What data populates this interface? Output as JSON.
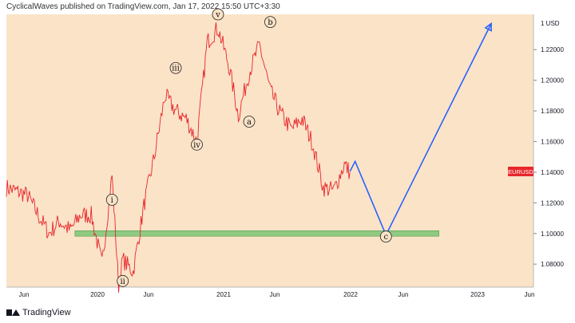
{
  "header": {
    "text": "CyclicalWaves published on TradingView.com, Jan 17, 2022 15:50 UTC+3:30"
  },
  "footer": {
    "brand": "TradingView"
  },
  "colors": {
    "background": "#FBE3C8",
    "price": "#E8262B",
    "projection": "#2962FF",
    "support": "#7CC576",
    "badge": "#E8262B"
  },
  "price_axis": {
    "currency": "1 USD",
    "ticks": [
      "1.22000",
      "1.20000",
      "1.18000",
      "1.16000",
      "1.14000",
      "1.12000",
      "1.10000",
      "1.08000"
    ],
    "ticks_values": [
      1.22,
      1.2,
      1.18,
      1.16,
      1.14,
      1.12,
      1.1,
      1.08
    ],
    "current_label": "EURUSD",
    "current_value": 1.1405
  },
  "time_axis": {
    "labels": [
      "Jun",
      "2020",
      "Jun",
      "2021",
      "Jun",
      "2022",
      "Jun",
      "2023",
      "Jun"
    ]
  },
  "chart_data": {
    "type": "line",
    "symbol": "EURUSD",
    "ylim": [
      1.065,
      1.243
    ],
    "price_path": [
      [
        "2019-05",
        1.13
      ],
      [
        "2019-07",
        1.125
      ],
      [
        "2019-08",
        1.112
      ],
      [
        "2019-09",
        1.1
      ],
      [
        "2019-10",
        1.108
      ],
      [
        "2019-11",
        1.102
      ],
      [
        "2019-12",
        1.112
      ],
      [
        "2020-01",
        1.112
      ],
      [
        "2020-02",
        1.08
      ],
      [
        "2020-03",
        1.138
      ],
      [
        "2020-03-20",
        1.066
      ],
      [
        "2020-04",
        1.083
      ],
      [
        "2020-05",
        1.075
      ],
      [
        "2020-06",
        1.118
      ],
      [
        "2020-07",
        1.15
      ],
      [
        "2020-08",
        1.19
      ],
      [
        "2020-09",
        1.18
      ],
      [
        "2020-10",
        1.175
      ],
      [
        "2020-11",
        1.16
      ],
      [
        "2020-12",
        1.225
      ],
      [
        "2021-01",
        1.234
      ],
      [
        "2021-02",
        1.21
      ],
      [
        "2021-03",
        1.177
      ],
      [
        "2021-04",
        1.205
      ],
      [
        "2021-05",
        1.223
      ],
      [
        "2021-06",
        1.193
      ],
      [
        "2021-07",
        1.178
      ],
      [
        "2021-08",
        1.168
      ],
      [
        "2021-09",
        1.175
      ],
      [
        "2021-10",
        1.159
      ],
      [
        "2021-11",
        1.13
      ],
      [
        "2021-12",
        1.128
      ],
      [
        "2022-01",
        1.145
      ],
      [
        "2022-01-17",
        1.14
      ]
    ],
    "projection_path": [
      [
        "2022-01-17",
        1.1405
      ],
      [
        "2022-02",
        1.147
      ],
      [
        "2022-05",
        1.099
      ],
      [
        "2023-03",
        1.237
      ]
    ],
    "support_zone": [
      1.099,
      1.101
    ],
    "wave_labels": [
      {
        "label": "i",
        "date": "2020-03",
        "price": 1.122
      },
      {
        "label": "ii",
        "date": "2020-04",
        "price": 1.069
      },
      {
        "label": "iii",
        "date": "2020-09",
        "price": 1.208
      },
      {
        "label": "iv",
        "date": "2020-11",
        "price": 1.158
      },
      {
        "label": "v",
        "date": "2021-01",
        "price": 1.243
      },
      {
        "label": "a",
        "date": "2021-04",
        "price": 1.173
      },
      {
        "label": "b",
        "date": "2021-06",
        "price": 1.238
      },
      {
        "label": "c",
        "date": "2022-05",
        "price": 1.098
      }
    ]
  }
}
